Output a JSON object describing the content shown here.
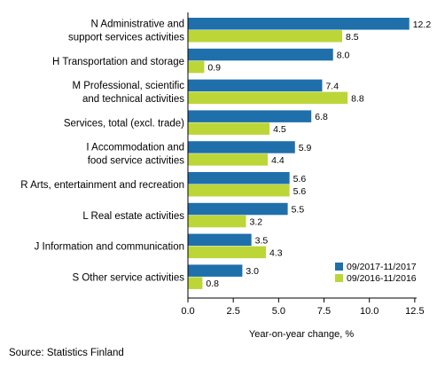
{
  "chart_data": {
    "type": "bar",
    "orientation": "horizontal",
    "categories": [
      [
        "N Administrative and",
        "support services activities"
      ],
      [
        "H Transportation and storage"
      ],
      [
        "M Professional, scientific",
        "and technical activities"
      ],
      [
        "Services, total (excl. trade)"
      ],
      [
        "I Accommodation and",
        "food service activities"
      ],
      [
        "R Arts, entertainment and recreation"
      ],
      [
        "L Real estate activities"
      ],
      [
        "J Information and communication"
      ],
      [
        "S Other service activities"
      ]
    ],
    "series": [
      {
        "name": "09/2017-11/2017",
        "color": "#1f6fab",
        "values": [
          12.2,
          8.0,
          7.4,
          6.8,
          5.9,
          5.6,
          5.5,
          3.5,
          3.0
        ],
        "labels": [
          "12.2",
          "8.0",
          "7.4",
          "6.8",
          "5.9",
          "5.6",
          "5.5",
          "3.5",
          "3.0"
        ]
      },
      {
        "name": "09/2016-11/2016",
        "color": "#bcd638",
        "values": [
          8.5,
          0.9,
          8.8,
          4.5,
          4.4,
          5.6,
          3.2,
          4.3,
          0.8
        ],
        "labels": [
          "8.5",
          "0.9",
          "8.8",
          "4.5",
          "4.4",
          "5.6",
          "3.2",
          "4.3",
          "0.8"
        ]
      }
    ],
    "xlim": [
      0,
      14
    ],
    "xticks": [
      0,
      2.5,
      5,
      7.5,
      10,
      12.5
    ],
    "xtick_labels": [
      "0.0",
      "2.5",
      "5.0",
      "7.5",
      "10.0",
      "12.5"
    ],
    "xlabel": "Year-on-year change, %",
    "legend_position": "bottom-right",
    "grid": false
  },
  "source": "Source: Statistics Finland"
}
